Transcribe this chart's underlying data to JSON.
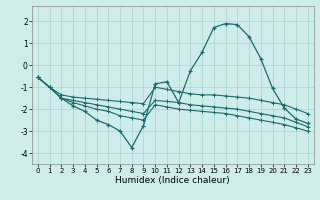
{
  "xlabel": "Humidex (Indice chaleur)",
  "bg_color": "#ceecea",
  "grid_color": "#aed8d4",
  "line_color": "#1a6b6b",
  "xlim": [
    -0.5,
    23.5
  ],
  "ylim": [
    -4.5,
    2.7
  ],
  "yticks": [
    -4,
    -3,
    -2,
    -1,
    0,
    1,
    2
  ],
  "xticks": [
    0,
    1,
    2,
    3,
    4,
    5,
    6,
    7,
    8,
    9,
    10,
    11,
    12,
    13,
    14,
    15,
    16,
    17,
    18,
    19,
    20,
    21,
    22,
    23
  ],
  "flat_series": [
    {
      "x": [
        0,
        1,
        2,
        3,
        4,
        5,
        6,
        7,
        8,
        9,
        10,
        11,
        12,
        13,
        14,
        15,
        16,
        17,
        18,
        19,
        20,
        21,
        22,
        23
      ],
      "y": [
        -0.55,
        -1.0,
        -1.35,
        -1.45,
        -1.5,
        -1.55,
        -1.6,
        -1.65,
        -1.7,
        -1.75,
        -1.0,
        -1.1,
        -1.2,
        -1.3,
        -1.35,
        -1.35,
        -1.4,
        -1.45,
        -1.5,
        -1.6,
        -1.7,
        -1.8,
        -2.0,
        -2.2
      ]
    },
    {
      "x": [
        0,
        1,
        2,
        3,
        4,
        5,
        6,
        7,
        8,
        9,
        10,
        11,
        12,
        13,
        14,
        15,
        16,
        17,
        18,
        19,
        20,
        21,
        22,
        23
      ],
      "y": [
        -0.55,
        -1.0,
        -1.5,
        -1.6,
        -1.7,
        -1.8,
        -1.9,
        -2.0,
        -2.1,
        -2.2,
        -1.6,
        -1.65,
        -1.7,
        -1.8,
        -1.85,
        -1.9,
        -1.95,
        -2.0,
        -2.1,
        -2.2,
        -2.3,
        -2.4,
        -2.6,
        -2.8
      ]
    },
    {
      "x": [
        0,
        1,
        2,
        3,
        4,
        5,
        6,
        7,
        8,
        9,
        10,
        11,
        12,
        13,
        14,
        15,
        16,
        17,
        18,
        19,
        20,
        21,
        22,
        23
      ],
      "y": [
        -0.55,
        -1.0,
        -1.5,
        -1.7,
        -1.85,
        -2.0,
        -2.1,
        -2.3,
        -2.4,
        -2.5,
        -1.8,
        -1.9,
        -2.0,
        -2.05,
        -2.1,
        -2.15,
        -2.2,
        -2.3,
        -2.4,
        -2.5,
        -2.6,
        -2.7,
        -2.85,
        -3.0
      ]
    }
  ],
  "main_series": {
    "x": [
      0,
      1,
      2,
      3,
      4,
      5,
      6,
      7,
      8,
      9,
      10,
      11,
      12,
      13,
      14,
      15,
      16,
      17,
      18,
      19,
      20,
      21,
      22,
      23
    ],
    "y": [
      -0.55,
      -1.0,
      -1.5,
      -1.85,
      -2.1,
      -2.5,
      -2.7,
      -3.0,
      -3.75,
      -2.75,
      -0.85,
      -0.75,
      -1.7,
      -0.25,
      0.6,
      1.72,
      1.9,
      1.85,
      1.3,
      0.3,
      -1.05,
      -1.95,
      -2.45,
      -2.65
    ]
  }
}
